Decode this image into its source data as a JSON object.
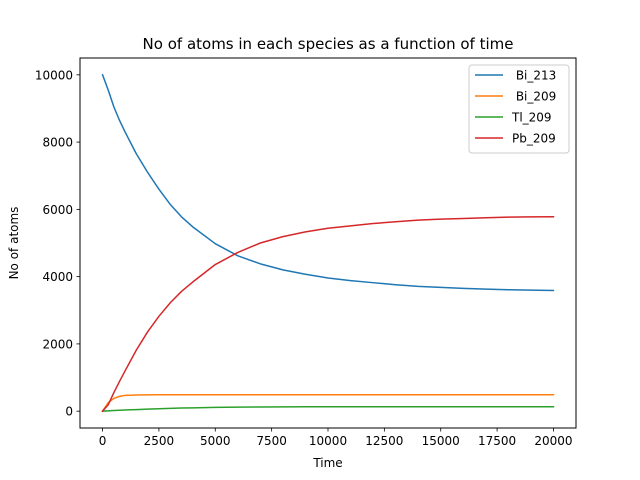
{
  "chart_data": {
    "type": "line",
    "title": "No of atoms in each species as a function of time",
    "xlabel": "Time",
    "ylabel": "No of atoms",
    "xlim": [
      -1000,
      21000
    ],
    "ylim": [
      -500,
      10500
    ],
    "xticks": [
      0,
      2500,
      5000,
      7500,
      10000,
      12500,
      15000,
      17500,
      20000
    ],
    "xtick_labels": [
      "0",
      "2500",
      "5000",
      "7500",
      "10000",
      "12500",
      "15000",
      "17500",
      "20000"
    ],
    "yticks": [
      0,
      2000,
      4000,
      6000,
      8000,
      10000
    ],
    "ytick_labels": [
      "0",
      "2000",
      "4000",
      "6000",
      "8000",
      "10000"
    ],
    "grid": false,
    "legend_position": "top-right",
    "x": [
      0,
      250,
      500,
      750,
      1000,
      1500,
      2000,
      2500,
      3000,
      3500,
      4000,
      5000,
      6000,
      7000,
      8000,
      9000,
      10000,
      11000,
      12000,
      13000,
      14000,
      15000,
      16000,
      17000,
      18000,
      19000,
      20000
    ],
    "series": [
      {
        "name": " Bi_213",
        "color": "#1f77b4",
        "values": [
          10000,
          9550,
          9050,
          8650,
          8300,
          7650,
          7100,
          6600,
          6150,
          5780,
          5480,
          4980,
          4620,
          4380,
          4200,
          4070,
          3960,
          3880,
          3820,
          3760,
          3710,
          3680,
          3650,
          3630,
          3610,
          3600,
          3590
        ]
      },
      {
        "name": " Bi_209",
        "color": "#ff7f0e",
        "values": [
          0,
          250,
          380,
          440,
          470,
          480,
          485,
          487,
          488,
          488,
          488,
          488,
          488,
          488,
          488,
          488,
          488,
          488,
          488,
          488,
          488,
          488,
          488,
          488,
          488,
          488,
          488
        ]
      },
      {
        "name": "Tl_209",
        "color": "#2ca02c",
        "values": [
          0,
          10,
          20,
          28,
          35,
          48,
          62,
          74,
          85,
          93,
          100,
          112,
          120,
          125,
          128,
          130,
          131,
          132,
          132,
          133,
          133,
          133,
          133,
          133,
          133,
          133,
          133
        ]
      },
      {
        "name": "Pb_209",
        "color": "#d62728",
        "values": [
          0,
          190,
          550,
          880,
          1200,
          1820,
          2360,
          2820,
          3220,
          3560,
          3840,
          4360,
          4720,
          5000,
          5190,
          5330,
          5440,
          5510,
          5580,
          5630,
          5680,
          5710,
          5730,
          5750,
          5770,
          5775,
          5780
        ]
      }
    ]
  }
}
